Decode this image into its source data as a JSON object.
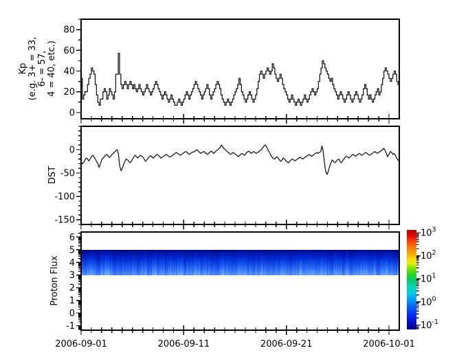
{
  "figure": {
    "background": "#ffffff",
    "line_color": "#000000"
  },
  "xaxis": {
    "labels": [
      "2006-09-01",
      "2006-09-11",
      "2006-09-21",
      "2006-10-01"
    ],
    "major_days": [
      0,
      10,
      20,
      30
    ],
    "total_days": 31
  },
  "colorbar": {
    "scale": "log",
    "tick_labels": [
      "10³",
      "10²",
      "10¹",
      "10⁰",
      "10⁻¹"
    ],
    "tick_exponents": [
      3,
      2,
      1,
      0,
      -1
    ],
    "range_exponents": [
      -1.2,
      3.12
    ],
    "colormap": "jet",
    "top_color": "#b00000",
    "bottom_color": "#000088"
  },
  "chart_data": [
    {
      "type": "line",
      "subtype": "step",
      "name": "Kp",
      "ylabel_lines": [
        "Kp",
        "(e.g. 3+ = 33,",
        "6- = 57,",
        "4 = 40, etc.)"
      ],
      "ylim": [
        -6,
        90
      ],
      "yticks": [
        0,
        20,
        40,
        60,
        80
      ],
      "y_minor_step": 10,
      "x_start": "2006-09-01",
      "points_per_day": 8,
      "values": [
        33,
        13,
        17,
        20,
        20,
        27,
        33,
        37,
        43,
        40,
        37,
        27,
        17,
        10,
        7,
        13,
        13,
        20,
        23,
        20,
        13,
        17,
        23,
        20,
        17,
        13,
        20,
        37,
        37,
        57,
        37,
        27,
        23,
        27,
        30,
        27,
        23,
        27,
        30,
        27,
        23,
        27,
        23,
        20,
        23,
        27,
        23,
        20,
        17,
        20,
        23,
        27,
        23,
        20,
        17,
        20,
        23,
        27,
        30,
        27,
        23,
        20,
        17,
        13,
        17,
        20,
        17,
        13,
        10,
        13,
        17,
        13,
        10,
        7,
        7,
        10,
        13,
        10,
        7,
        10,
        13,
        17,
        20,
        17,
        13,
        17,
        20,
        23,
        27,
        30,
        27,
        23,
        20,
        17,
        13,
        17,
        20,
        23,
        27,
        23,
        17,
        13,
        17,
        20,
        23,
        27,
        30,
        27,
        23,
        17,
        13,
        10,
        7,
        10,
        13,
        10,
        7,
        10,
        13,
        17,
        20,
        23,
        27,
        33,
        27,
        20,
        17,
        13,
        10,
        13,
        17,
        20,
        17,
        13,
        10,
        13,
        17,
        23,
        30,
        37,
        40,
        37,
        33,
        37,
        40,
        43,
        40,
        37,
        40,
        47,
        43,
        37,
        33,
        30,
        33,
        37,
        33,
        27,
        23,
        20,
        17,
        13,
        10,
        13,
        17,
        13,
        10,
        7,
        10,
        13,
        10,
        7,
        10,
        13,
        17,
        13,
        10,
        13,
        17,
        20,
        23,
        20,
        17,
        20,
        23,
        30,
        37,
        43,
        50,
        47,
        43,
        40,
        37,
        33,
        30,
        33,
        27,
        23,
        20,
        17,
        13,
        17,
        20,
        17,
        13,
        10,
        13,
        17,
        20,
        17,
        13,
        10,
        13,
        17,
        20,
        17,
        13,
        10,
        13,
        17,
        23,
        27,
        23,
        17,
        13,
        17,
        13,
        10,
        13,
        17,
        20,
        23,
        17,
        20,
        27,
        33,
        40,
        43,
        40,
        37,
        33,
        30,
        33,
        37,
        40,
        37,
        30,
        27
      ]
    },
    {
      "type": "line",
      "name": "DST",
      "ylabel": "DST",
      "ylim": [
        -160,
        50
      ],
      "yticks": [
        0,
        -50,
        -100,
        -150
      ],
      "y_minor_step": 10,
      "x_start": "2006-09-01",
      "points_per_day": 8,
      "values": [
        -25,
        -30,
        -28,
        -22,
        -18,
        -20,
        -24,
        -20,
        -15,
        -12,
        -15,
        -20,
        -25,
        -30,
        -38,
        -30,
        -22,
        -18,
        -15,
        -12,
        -10,
        -13,
        -17,
        -14,
        -10,
        -8,
        -5,
        -2,
        0,
        -10,
        -35,
        -45,
        -40,
        -32,
        -25,
        -20,
        -22,
        -25,
        -28,
        -25,
        -20,
        -15,
        -12,
        -15,
        -18,
        -15,
        -12,
        -14,
        -16,
        -20,
        -25,
        -22,
        -18,
        -15,
        -13,
        -15,
        -18,
        -15,
        -12,
        -10,
        -12,
        -15,
        -18,
        -16,
        -14,
        -12,
        -10,
        -12,
        -14,
        -16,
        -14,
        -12,
        -10,
        -8,
        -6,
        -8,
        -10,
        -12,
        -10,
        -8,
        -6,
        -4,
        -5,
        -8,
        -10,
        -8,
        -6,
        -5,
        -4,
        -2,
        0,
        -3,
        -6,
        -8,
        -6,
        -4,
        -5,
        -8,
        -10,
        -8,
        -5,
        -3,
        -5,
        -8,
        -5,
        -2,
        0,
        2,
        5,
        10,
        6,
        2,
        0,
        -3,
        -5,
        -8,
        -10,
        -8,
        -6,
        -8,
        -10,
        -12,
        -15,
        -12,
        -10,
        -8,
        -10,
        -12,
        -8,
        -5,
        -3,
        -5,
        -8,
        -6,
        -4,
        -6,
        -8,
        -6,
        -4,
        -2,
        0,
        4,
        8,
        10,
        6,
        0,
        -5,
        -10,
        -15,
        -18,
        -20,
        -18,
        -15,
        -18,
        -22,
        -25,
        -22,
        -18,
        -20,
        -24,
        -26,
        -28,
        -25,
        -22,
        -20,
        -22,
        -24,
        -22,
        -20,
        -18,
        -16,
        -18,
        -20,
        -18,
        -16,
        -14,
        -12,
        -10,
        -12,
        -14,
        -12,
        -10,
        -8,
        -6,
        -8,
        -6,
        -4,
        8,
        -5,
        -30,
        -48,
        -53,
        -45,
        -35,
        -28,
        -22,
        -25,
        -28,
        -25,
        -22,
        -20,
        -25,
        -28,
        -24,
        -20,
        -16,
        -14,
        -16,
        -18,
        -15,
        -12,
        -10,
        -12,
        -14,
        -12,
        -10,
        -8,
        -10,
        -12,
        -10,
        -8,
        -6,
        -8,
        -10,
        -12,
        -10,
        -8,
        -6,
        -4,
        -6,
        -8,
        -6,
        -4,
        -2,
        0,
        3,
        -2,
        -8,
        -15,
        -10,
        -4,
        -6,
        -10,
        -8,
        -12,
        -18,
        -22,
        -25
      ]
    },
    {
      "type": "heatmap",
      "name": "Proton Flux",
      "ylabel": "Proton Flux",
      "ylim": [
        -1.35,
        6.4
      ],
      "yticks": [
        -1,
        0,
        1,
        2,
        3,
        4,
        5,
        6
      ],
      "y_minor": "log-decade",
      "band": {
        "ymin": 3,
        "ymax": 5
      },
      "column_intensity": [
        0.7,
        0.4,
        0.8,
        0.3,
        0.6,
        0.9,
        0.5,
        0.2,
        0.7,
        0.5,
        0.8,
        0.4,
        0.6,
        0.3,
        0.9,
        0.6,
        0.4,
        0.7,
        0.5,
        0.8,
        0.3,
        0.6,
        0.9,
        0.4,
        0.7,
        0.5,
        0.2,
        0.8,
        0.6,
        0.4,
        0.7,
        0.9,
        0.5,
        0.3,
        0.6,
        0.8,
        0.4,
        0.7,
        0.5,
        0.9,
        0.3,
        0.6,
        0.8,
        0.5,
        0.7,
        0.4,
        0.9,
        0.6,
        0.3,
        0.7,
        0.5,
        0.8,
        0.4,
        0.6,
        0.9,
        0.5,
        0.7,
        0.3,
        0.8,
        0.6,
        0.4,
        0.7
      ]
    }
  ]
}
